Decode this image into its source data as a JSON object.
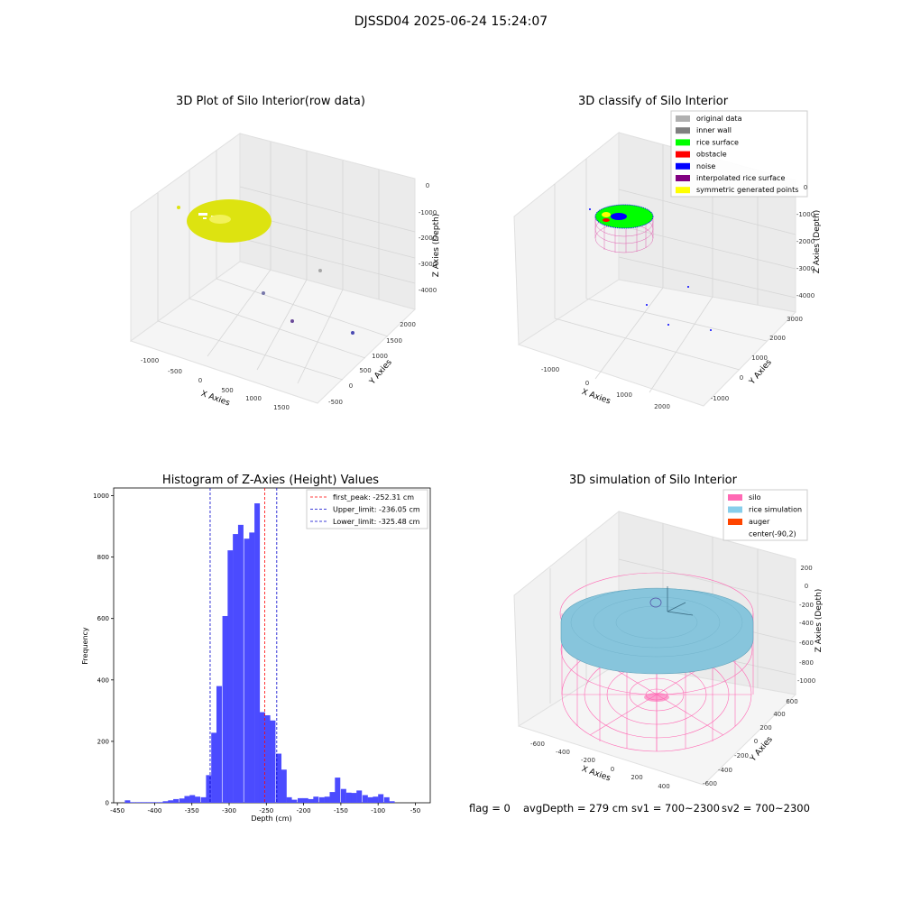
{
  "suptitle": "DJSSD04 2025-06-24 15:24:07",
  "chart_data": [
    {
      "type": "scatter3d",
      "title": "3D Plot of Silo Interior(row data)",
      "xlabel": "X Axies",
      "ylabel": "Y Axies",
      "zlabel": "Z Axies (Depth)",
      "x_ticks": [
        "-1000",
        "-500",
        "0",
        "500",
        "1000",
        "1500"
      ],
      "y_ticks": [
        "-500",
        "0",
        "500",
        "1000",
        "1500",
        "2000"
      ],
      "z_ticks": [
        "0",
        "-1000",
        "-2000",
        "-3000",
        "-4000"
      ],
      "grid": true,
      "colors": {
        "surface": "#dde310",
        "points": "#9a8bb5"
      }
    },
    {
      "type": "scatter3d",
      "title": "3D classify of Silo Interior",
      "xlabel": "X Axies",
      "ylabel": "Y Axies",
      "zlabel": "Z Axies (Depth)",
      "x_ticks": [
        "-1000",
        "0",
        "1000",
        "2000"
      ],
      "y_ticks": [
        "-1000",
        "0",
        "1000",
        "2000",
        "3000"
      ],
      "z_ticks": [
        "0",
        "-1000",
        "-2000",
        "-3000",
        "-4000"
      ],
      "legend_position": "top-right",
      "legend": [
        {
          "label": "original data",
          "color": "#b0b0b0"
        },
        {
          "label": "inner wall",
          "color": "#808080"
        },
        {
          "label": "rice surface",
          "color": "#00ff00"
        },
        {
          "label": "obstacle",
          "color": "#ff0000"
        },
        {
          "label": "noise",
          "color": "#0000ff"
        },
        {
          "label": "interpolated rice surface",
          "color": "#800080"
        },
        {
          "label": "symmetric generated points",
          "color": "#ffff00"
        }
      ],
      "grid": true
    },
    {
      "type": "bar",
      "title": "Histogram of Z-Axies (Height) Values",
      "xlabel": "Depth (cm)",
      "ylabel": "Frequency",
      "x_ticks": [
        -450,
        -400,
        -350,
        -300,
        -250,
        -200,
        -150,
        -100,
        -50
      ],
      "y_ticks": [
        0,
        200,
        400,
        600,
        800,
        1000
      ],
      "xlim": [
        -455,
        -30
      ],
      "ylim": [
        0,
        1025
      ],
      "bin_width": 7.25,
      "bins": [
        [
          -440,
          8
        ],
        [
          -433,
          2
        ],
        [
          -425,
          2
        ],
        [
          -418,
          2
        ],
        [
          -411,
          2
        ],
        [
          -404,
          2
        ],
        [
          -396,
          2
        ],
        [
          -389,
          5
        ],
        [
          -382,
          8
        ],
        [
          -375,
          12
        ],
        [
          -367,
          14
        ],
        [
          -360,
          22
        ],
        [
          -353,
          25
        ],
        [
          -346,
          20
        ],
        [
          -338,
          18
        ],
        [
          -331,
          90
        ],
        [
          -324,
          228
        ],
        [
          -317,
          380
        ],
        [
          -309,
          608
        ],
        [
          -302,
          822
        ],
        [
          -295,
          875
        ],
        [
          -288,
          905
        ],
        [
          -280,
          860
        ],
        [
          -273,
          880
        ],
        [
          -266,
          975
        ],
        [
          -259,
          295
        ],
        [
          -252,
          285
        ],
        [
          -245,
          268
        ],
        [
          -237,
          160
        ],
        [
          -230,
          108
        ],
        [
          -223,
          18
        ],
        [
          -216,
          10
        ],
        [
          -208,
          15
        ],
        [
          -201,
          15
        ],
        [
          -194,
          12
        ],
        [
          -187,
          20
        ],
        [
          -179,
          18
        ],
        [
          -172,
          20
        ],
        [
          -165,
          35
        ],
        [
          -158,
          82
        ],
        [
          -150,
          45
        ],
        [
          -143,
          33
        ],
        [
          -136,
          32
        ],
        [
          -129,
          40
        ],
        [
          -121,
          25
        ],
        [
          -114,
          18
        ],
        [
          -107,
          20
        ],
        [
          -100,
          28
        ],
        [
          -92,
          18
        ],
        [
          -85,
          5
        ]
      ],
      "bar_color": "#4b4bff",
      "vlines": [
        {
          "label": "first_peak: -252.31 cm",
          "x": -252.31,
          "color": "#ff0000"
        },
        {
          "label": "Upper_limit: -236.05 cm",
          "x": -236.05,
          "color": "#0000cc"
        },
        {
          "label": "Lower_limit: -325.48 cm",
          "x": -325.48,
          "color": "#0000cc"
        }
      ],
      "legend_position": "top-right",
      "grid": false
    },
    {
      "type": "surface3d",
      "title": "3D simulation of Silo Interior",
      "xlabel": "X Axies",
      "ylabel": "Y Axies",
      "zlabel": "Z Axies (Depth)",
      "x_ticks": [
        "-600",
        "-400",
        "-200",
        "0",
        "200",
        "400"
      ],
      "y_ticks": [
        "-600",
        "-400",
        "-200",
        "0",
        "200",
        "400",
        "600"
      ],
      "z_ticks": [
        "200",
        "0",
        "-200",
        "-400",
        "-600",
        "-800",
        "-1000"
      ],
      "legend_position": "top-right",
      "legend": [
        {
          "label": "silo",
          "color": "#ff69b4"
        },
        {
          "label": "rice simulation",
          "color": "#87ceeb"
        },
        {
          "label": "auger",
          "color": "#ff4500"
        },
        {
          "label": "center(-90,2)",
          "color": null
        }
      ],
      "grid": true
    }
  ],
  "status": {
    "flag": "flag = 0",
    "avg_depth": "avgDepth = 279 cm",
    "sv1": "sv1 = 700~2300",
    "sv2": "sv2 = 700~2300"
  }
}
